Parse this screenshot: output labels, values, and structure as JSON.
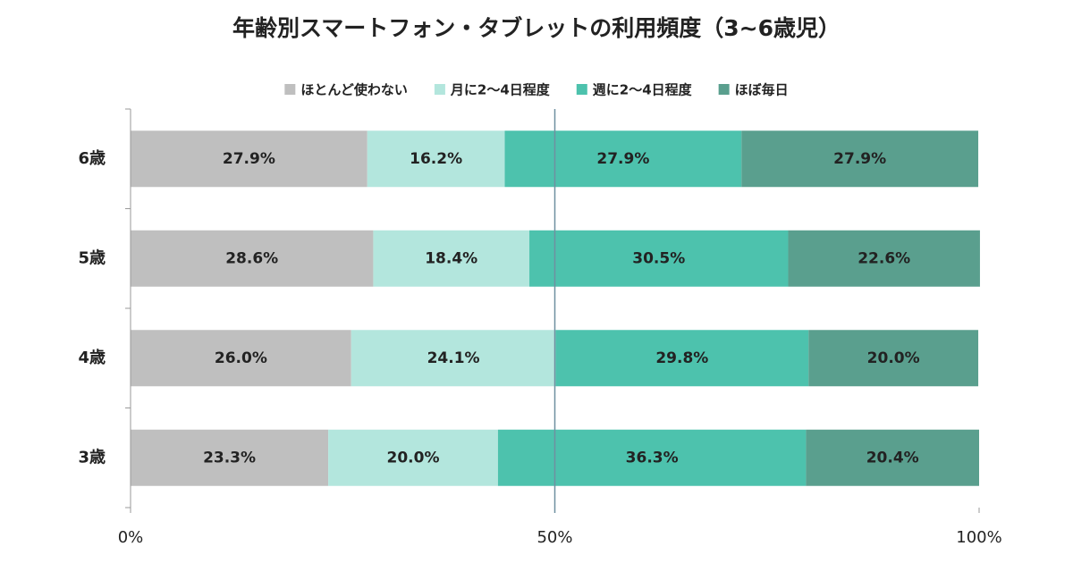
{
  "chart_data": {
    "type": "stacked-bar-horizontal",
    "title": "年齢別スマートフォン・タブレットの利用頻度（3~6歳児）",
    "categories": [
      "6歳",
      "5歳",
      "4歳",
      "3歳"
    ],
    "series": [
      {
        "name": "ほとんど使わない",
        "color": "#bfbfbf",
        "values": [
          27.9,
          28.6,
          26.0,
          23.3
        ],
        "value_labels": [
          "27.9%",
          "28.6%",
          "26.0%",
          "23.3%"
        ]
      },
      {
        "name": "月に2～4日程度",
        "color": "#b3e6dd",
        "values": [
          16.2,
          18.4,
          24.1,
          20.0
        ],
        "value_labels": [
          "16.2%",
          "18.4%",
          "24.1%",
          "20.0%"
        ]
      },
      {
        "name": "週に2～4日程度",
        "color": "#4dc2ad",
        "values": [
          27.9,
          30.5,
          29.8,
          36.3
        ],
        "value_labels": [
          "27.9%",
          "30.5%",
          "29.8%",
          "36.3%"
        ]
      },
      {
        "name": "ほぼ毎日",
        "color": "#5a9f8e",
        "values": [
          27.9,
          22.6,
          20.0,
          20.4
        ],
        "value_labels": [
          "27.9%",
          "22.6%",
          "20.0%",
          "20.4%"
        ]
      }
    ],
    "xlim": [
      0,
      100
    ],
    "xticks": [
      {
        "value": 0,
        "label": "0%"
      },
      {
        "value": 50,
        "label": "50%"
      },
      {
        "value": 100,
        "label": "100%"
      }
    ],
    "grid": true,
    "legend": "top"
  }
}
